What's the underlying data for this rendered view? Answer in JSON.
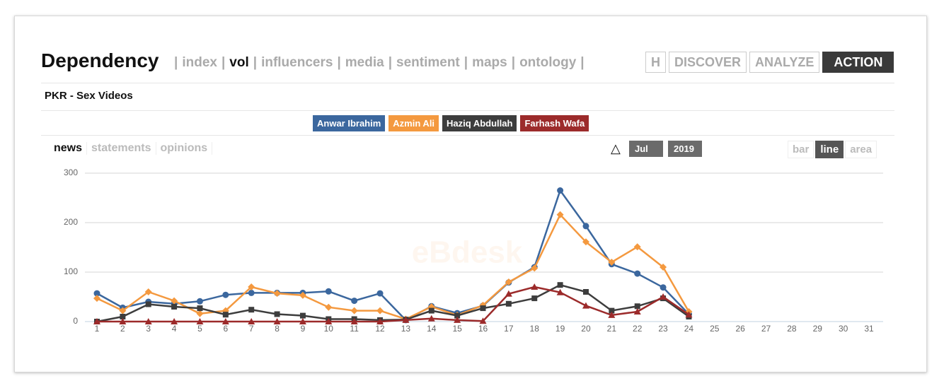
{
  "header": {
    "title": "Dependency",
    "nav_separator": "|",
    "nav": [
      {
        "label": "index",
        "active": false
      },
      {
        "label": "vol",
        "active": true
      },
      {
        "label": "influencers",
        "active": false
      },
      {
        "label": "media",
        "active": false
      },
      {
        "label": "sentiment",
        "active": false
      },
      {
        "label": "maps",
        "active": false
      },
      {
        "label": "ontology",
        "active": false
      }
    ],
    "stages": [
      {
        "label": "H",
        "active": false
      },
      {
        "label": "DISCOVER",
        "active": false
      },
      {
        "label": "ANALYZE",
        "active": false
      },
      {
        "label": "ACTION",
        "active": true
      }
    ]
  },
  "subtitle": "PKR - Sex Videos",
  "tabs": [
    {
      "label": "news",
      "active": true
    },
    {
      "label": "statements",
      "active": false
    },
    {
      "label": "opinions",
      "active": false
    }
  ],
  "date": {
    "toggle": "△",
    "month": "Jul",
    "year": "2019"
  },
  "modes": [
    {
      "label": "bar",
      "active": false
    },
    {
      "label": "line",
      "active": true
    },
    {
      "label": "area",
      "active": false
    }
  ],
  "watermark": "eBdesk",
  "chart_data": {
    "type": "line",
    "categories": [
      "1",
      "2",
      "3",
      "4",
      "5",
      "6",
      "7",
      "8",
      "9",
      "10",
      "11",
      "12",
      "13",
      "14",
      "15",
      "16",
      "17",
      "18",
      "19",
      "20",
      "21",
      "22",
      "23",
      "24",
      "25",
      "26",
      "27",
      "28",
      "29",
      "30",
      "31"
    ],
    "series": [
      {
        "name": "Anwar Ibrahim",
        "color": "#3b679e",
        "marker": "circle",
        "values": [
          57,
          28,
          40,
          36,
          41,
          54,
          58,
          58,
          58,
          61,
          42,
          57,
          3,
          31,
          17,
          32,
          79,
          110,
          265,
          193,
          116,
          97,
          69,
          15,
          null,
          null,
          null,
          null,
          null,
          null,
          null
        ]
      },
      {
        "name": "Azmin Ali",
        "color": "#f4993f",
        "marker": "diamond",
        "values": [
          47,
          22,
          60,
          42,
          16,
          22,
          70,
          57,
          53,
          29,
          22,
          22,
          5,
          30,
          13,
          33,
          80,
          108,
          216,
          161,
          120,
          151,
          110,
          20,
          null,
          null,
          null,
          null,
          null,
          null,
          null
        ]
      },
      {
        "name": "Haziq Abdullah",
        "color": "#3d3d3d",
        "marker": "square",
        "values": [
          0,
          10,
          35,
          30,
          27,
          14,
          24,
          15,
          12,
          5,
          5,
          3,
          4,
          22,
          12,
          27,
          36,
          47,
          74,
          60,
          22,
          31,
          47,
          10,
          null,
          null,
          null,
          null,
          null,
          null,
          null
        ]
      },
      {
        "name": "Farhash Wafa",
        "color": "#9c2b2b",
        "marker": "triangle",
        "values": [
          0,
          0,
          0,
          0,
          0,
          0,
          0,
          0,
          0,
          0,
          0,
          0,
          3,
          6,
          3,
          1,
          56,
          70,
          59,
          32,
          13,
          20,
          50,
          14,
          null,
          null,
          null,
          null,
          null,
          null,
          null
        ]
      }
    ],
    "ylim": [
      0,
      300
    ],
    "yticks": [
      0,
      100,
      200,
      300
    ],
    "grid": true
  }
}
